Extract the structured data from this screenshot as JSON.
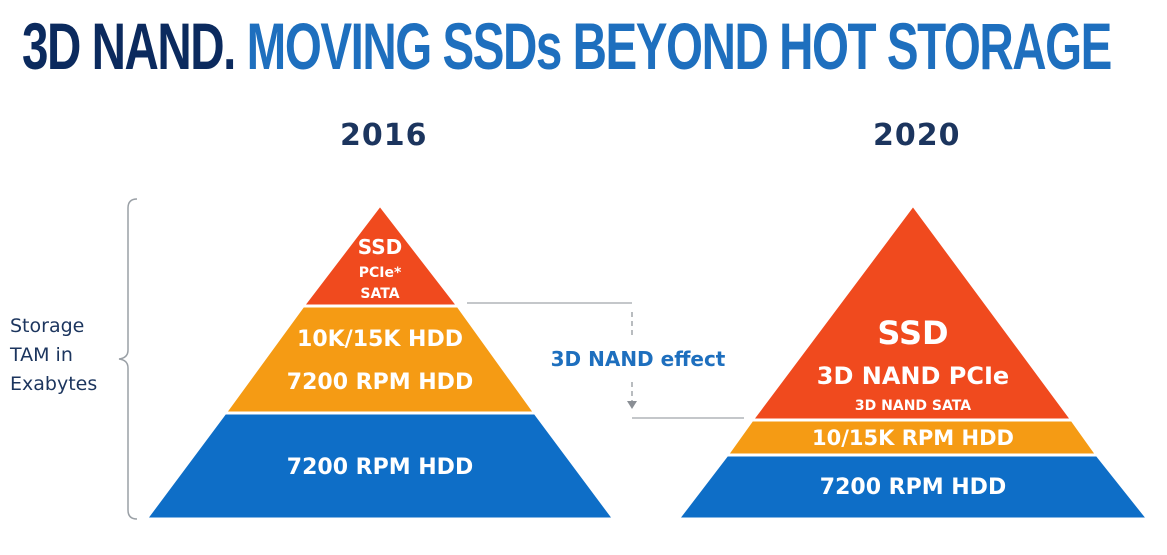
{
  "title": {
    "part1": "3D NAND.",
    "part2": "MOVING SSDs BEYOND HOT STORAGE"
  },
  "years": {
    "left": "2016",
    "right": "2020"
  },
  "ylabel": {
    "line1": "Storage",
    "line2": "TAM in",
    "line3": "Exabytes"
  },
  "left_pyramid": {
    "top": {
      "title": "SSD",
      "line2": "PCIe*",
      "line3": "SATA"
    },
    "middle": {
      "line1": "10K/15K HDD",
      "line2": "7200 RPM HDD"
    },
    "bottom": {
      "label": "7200 RPM HDD"
    }
  },
  "right_pyramid": {
    "top": {
      "title": "SSD",
      "line2": "3D NAND PCIe",
      "line3": "3D NAND SATA"
    },
    "middle": {
      "label": "10/15K RPM HDD"
    },
    "bottom": {
      "label": "7200 RPM HDD"
    }
  },
  "effect_label": "3D NAND effect",
  "colors": {
    "ssd": "#f04a1e",
    "hdd_mid": "#f59b14",
    "hdd_bottom": "#0e6ec7",
    "title_dark": "#0b2a5e",
    "title_blue": "#1e6fbe"
  }
}
